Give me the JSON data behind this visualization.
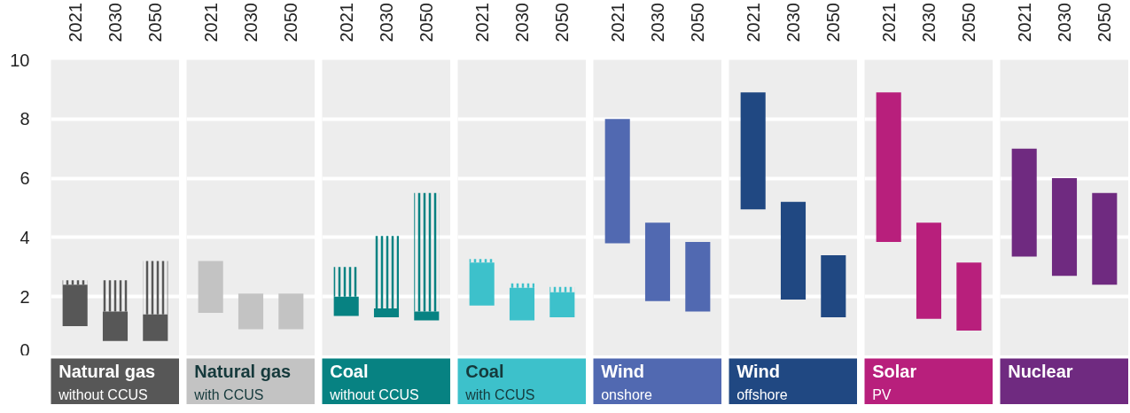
{
  "chart_data": [
    {
      "type": "bar",
      "title": "Natural gas",
      "subtitle": "without CCUS",
      "categories": [
        "2021",
        "2030",
        "2050"
      ],
      "ylim": [
        0,
        10
      ],
      "yticks": [
        0,
        2,
        4,
        6,
        8,
        10
      ],
      "grid": "y",
      "series": [
        {
          "color": "#575757",
          "base": [
            1.0,
            0.5,
            0.5
          ],
          "values": [
            1.4,
            1.0,
            0.9
          ]
        },
        {
          "color": "#575757",
          "base": [
            2.4,
            1.5,
            1.4
          ],
          "values": [
            0.15,
            1.05,
            1.8
          ]
        }
      ]
    },
    {
      "type": "bar",
      "title": "Natural gas",
      "subtitle": "with CCUS",
      "categories": [
        "2021",
        "2030",
        "2050"
      ],
      "ylim": [
        0,
        10
      ],
      "yticks": [
        0,
        2,
        4,
        6,
        8,
        10
      ],
      "grid": "y",
      "tick_labels": "x",
      "series": [
        {
          "color": "#c3c3c3",
          "base": [
            1.45,
            0.9,
            0.9
          ],
          "values": [
            1.75,
            1.2,
            1.2
          ]
        }
      ]
    },
    {
      "type": "bar",
      "title": "Coal",
      "subtitle": "without CCUS",
      "categories": [
        "2021",
        "2030",
        "2050"
      ],
      "ylim": [
        0,
        10
      ],
      "yticks": [
        0,
        2,
        4,
        6,
        8,
        10
      ],
      "grid": "y",
      "tick_labels": "x",
      "series": [
        {
          "color": "#078282",
          "base": [
            1.35,
            1.3,
            1.2
          ],
          "values": [
            0.65,
            0.3,
            0.3
          ]
        },
        {
          "color": "#078282",
          "base": [
            2.0,
            1.6,
            1.5
          ],
          "values": [
            1.0,
            2.45,
            4.0
          ]
        }
      ]
    },
    {
      "type": "bar",
      "title": "Coal",
      "subtitle": "with CCUS",
      "categories": [
        "2021",
        "2030",
        "2050"
      ],
      "ylim": [
        0,
        10
      ],
      "yticks": [
        0,
        2,
        4,
        6,
        8,
        10
      ],
      "grid": "y",
      "tick_labels": "x",
      "series": [
        {
          "color": "#3dc1cb",
          "base": [
            1.7,
            1.2,
            1.3
          ],
          "values": [
            1.45,
            1.1,
            0.85
          ]
        },
        {
          "color": "#3dc1cb",
          "base": [
            3.15,
            2.3,
            2.15
          ],
          "values": [
            0.12,
            0.15,
            0.18
          ]
        }
      ]
    },
    {
      "type": "bar",
      "title": "Wind",
      "subtitle": "onshore",
      "categories": [
        "2021",
        "2030",
        "2050"
      ],
      "ylim": [
        0,
        10
      ],
      "yticks": [
        0,
        2,
        4,
        6,
        8,
        10
      ],
      "grid": "y",
      "tick_labels": "x",
      "series": [
        {
          "color": "#5169b1",
          "base": [
            3.8,
            1.85,
            1.5
          ],
          "values": [
            4.2,
            2.65,
            2.35
          ]
        }
      ]
    },
    {
      "type": "bar",
      "title": "Wind",
      "subtitle": "offshore",
      "categories": [
        "2021",
        "2030",
        "2050"
      ],
      "ylim": [
        0,
        10
      ],
      "yticks": [
        0,
        2,
        4,
        6,
        8,
        10
      ],
      "grid": "y",
      "tick_labels": "x",
      "series": [
        {
          "color": "#204882",
          "base": [
            4.95,
            1.9,
            1.3
          ],
          "values": [
            3.95,
            3.3,
            2.1
          ]
        }
      ]
    },
    {
      "type": "bar",
      "title": "Solar",
      "subtitle": "PV",
      "categories": [
        "2021",
        "2030",
        "2050"
      ],
      "ylim": [
        0,
        10
      ],
      "yticks": [
        0,
        2,
        4,
        6,
        8,
        10
      ],
      "grid": "y",
      "tick_labels": "x",
      "series": [
        {
          "color": "#b81f7c",
          "base": [
            3.85,
            1.25,
            0.85
          ],
          "values": [
            5.05,
            3.25,
            2.3
          ]
        }
      ]
    },
    {
      "type": "bar",
      "title": "Nuclear",
      "categories": [
        "2021",
        "2030",
        "2050"
      ],
      "ylim": [
        0,
        10
      ],
      "yticks": [
        0,
        2,
        4,
        6,
        8,
        10
      ],
      "grid": "y",
      "tick_labels": "x",
      "series": [
        {
          "color": "#6f2a80",
          "base": [
            3.35,
            2.7,
            2.4
          ],
          "values": [
            3.65,
            3.3,
            3.1
          ]
        }
      ]
    }
  ]
}
